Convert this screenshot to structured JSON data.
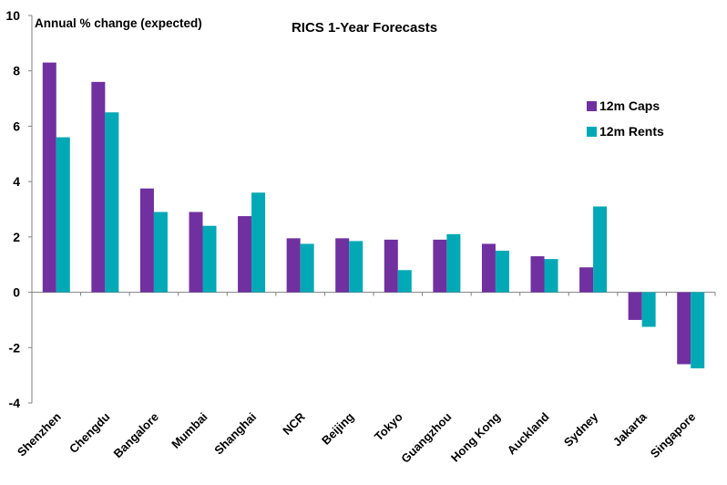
{
  "chart_data": {
    "type": "bar",
    "title": "RICS 1-Year Forecasts",
    "ylabel": "Annual % change (expected)",
    "xlabel": "",
    "ylim": [
      -4,
      10
    ],
    "yticks": [
      "10",
      "8",
      "6",
      "4",
      "2",
      "0",
      "-2",
      "-4"
    ],
    "ytick_values": [
      10,
      8,
      6,
      4,
      2,
      0,
      -2,
      -4
    ],
    "grid": false,
    "legend_position": "right",
    "categories": [
      "Shenzhen",
      "Chengdu",
      "Bangalore",
      "Mumbai",
      "Shanghai",
      "NCR",
      "Beijing",
      "Tokyo",
      "Guangzhou",
      "Hong Kong",
      "Auckland",
      "Sydney",
      "Jakarta",
      "Singapore"
    ],
    "series": [
      {
        "name": "12m Caps",
        "color": "#7030A0",
        "values": [
          8.3,
          7.6,
          3.75,
          2.9,
          2.75,
          1.95,
          1.95,
          1.9,
          1.9,
          1.75,
          1.3,
          0.9,
          -1.0,
          -2.6
        ]
      },
      {
        "name": "12m Rents",
        "color": "#00A9B5",
        "values": [
          5.6,
          6.5,
          2.9,
          2.4,
          3.6,
          1.75,
          1.85,
          0.8,
          2.1,
          1.5,
          1.2,
          3.1,
          -1.25,
          -2.75
        ]
      }
    ]
  }
}
